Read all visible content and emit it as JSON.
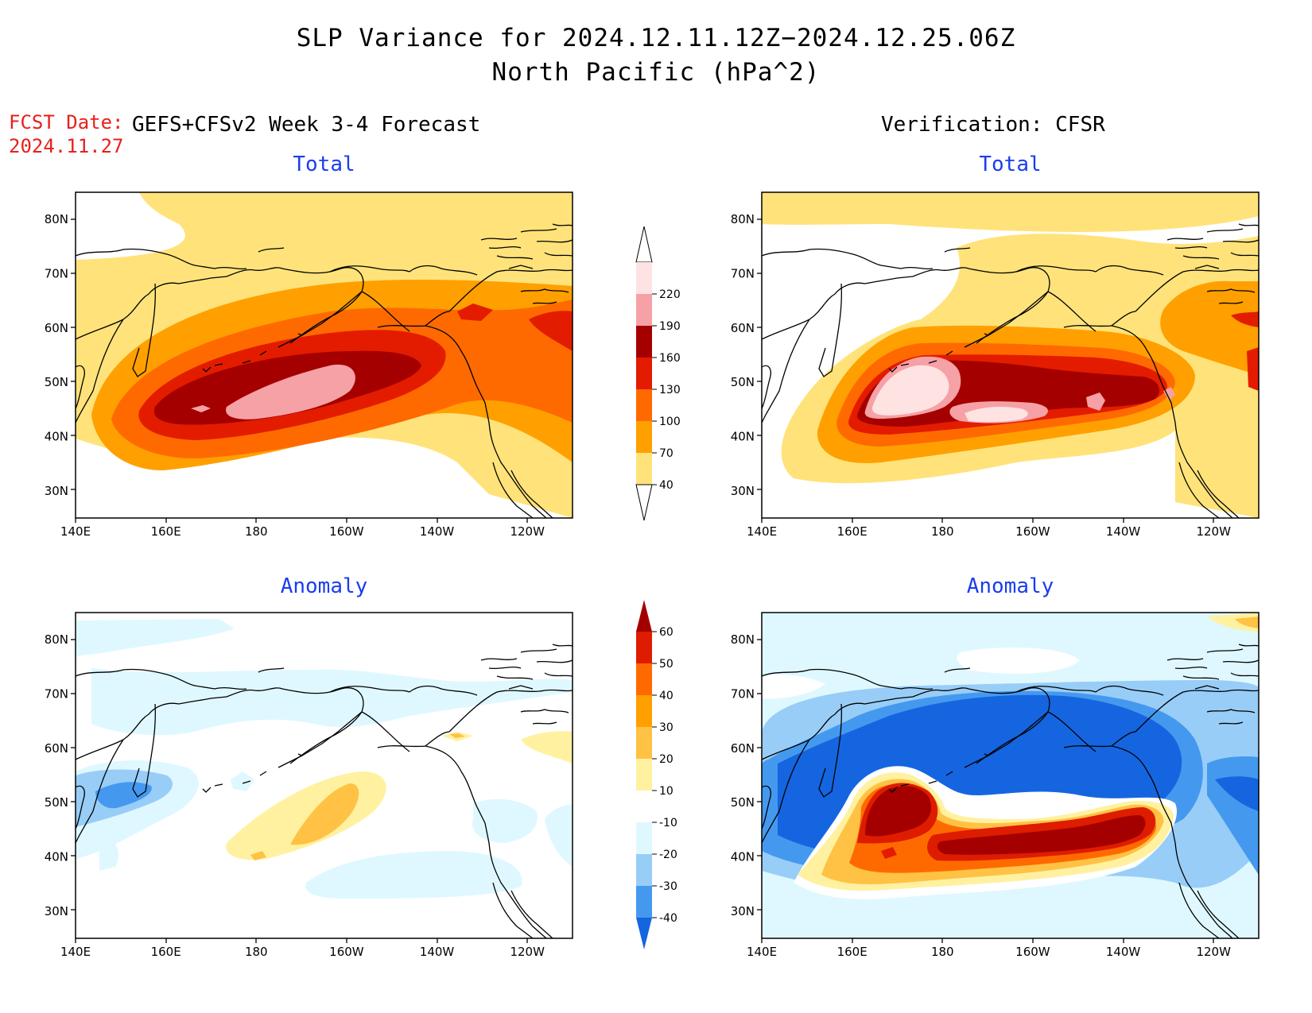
{
  "title": {
    "line1": "SLP Variance for 2024.12.11.12Z−2024.12.25.06Z",
    "line2": "North Pacific (hPa^2)"
  },
  "fcst": {
    "label": "FCST Date:",
    "date": "2024.11.27"
  },
  "headers": {
    "left": "GEFS+CFSv2 Week 3-4 Forecast",
    "right": "Verification: CFSR"
  },
  "panels": [
    {
      "id": "forecast-total",
      "subtitle": "Total"
    },
    {
      "id": "verification-total",
      "subtitle": "Total"
    },
    {
      "id": "forecast-anomaly",
      "subtitle": "Anomaly"
    },
    {
      "id": "verification-anomaly",
      "subtitle": "Anomaly"
    }
  ],
  "axes": {
    "x_ticks": [
      "140E",
      "160E",
      "180",
      "160W",
      "140W",
      "120W"
    ],
    "y_ticks": [
      "80N",
      "70N",
      "60N",
      "50N",
      "40N",
      "30N"
    ],
    "lon_range": [
      140,
      250
    ],
    "lat_range": [
      25,
      85
    ]
  },
  "colorbars": {
    "total": {
      "labels": [
        "40",
        "70",
        "100",
        "130",
        "160",
        "190",
        "220"
      ],
      "colors": [
        "#ffe37a",
        "#ffa000",
        "#ff6a00",
        "#e31c00",
        "#a50000",
        "#f5a1a5",
        "#ffe2e2"
      ]
    },
    "anomaly": {
      "labels": [
        "-40",
        "-30",
        "-20",
        "-10",
        "10",
        "20",
        "30",
        "40",
        "50",
        "60"
      ],
      "colors": [
        "#1565e0",
        "#4499ef",
        "#98cdf8",
        "#dff8ff",
        "#ffffff",
        "#fff1a0",
        "#ffc244",
        "#ffa000",
        "#ff6a00",
        "#dd1c00",
        "#a50000"
      ]
    }
  }
}
